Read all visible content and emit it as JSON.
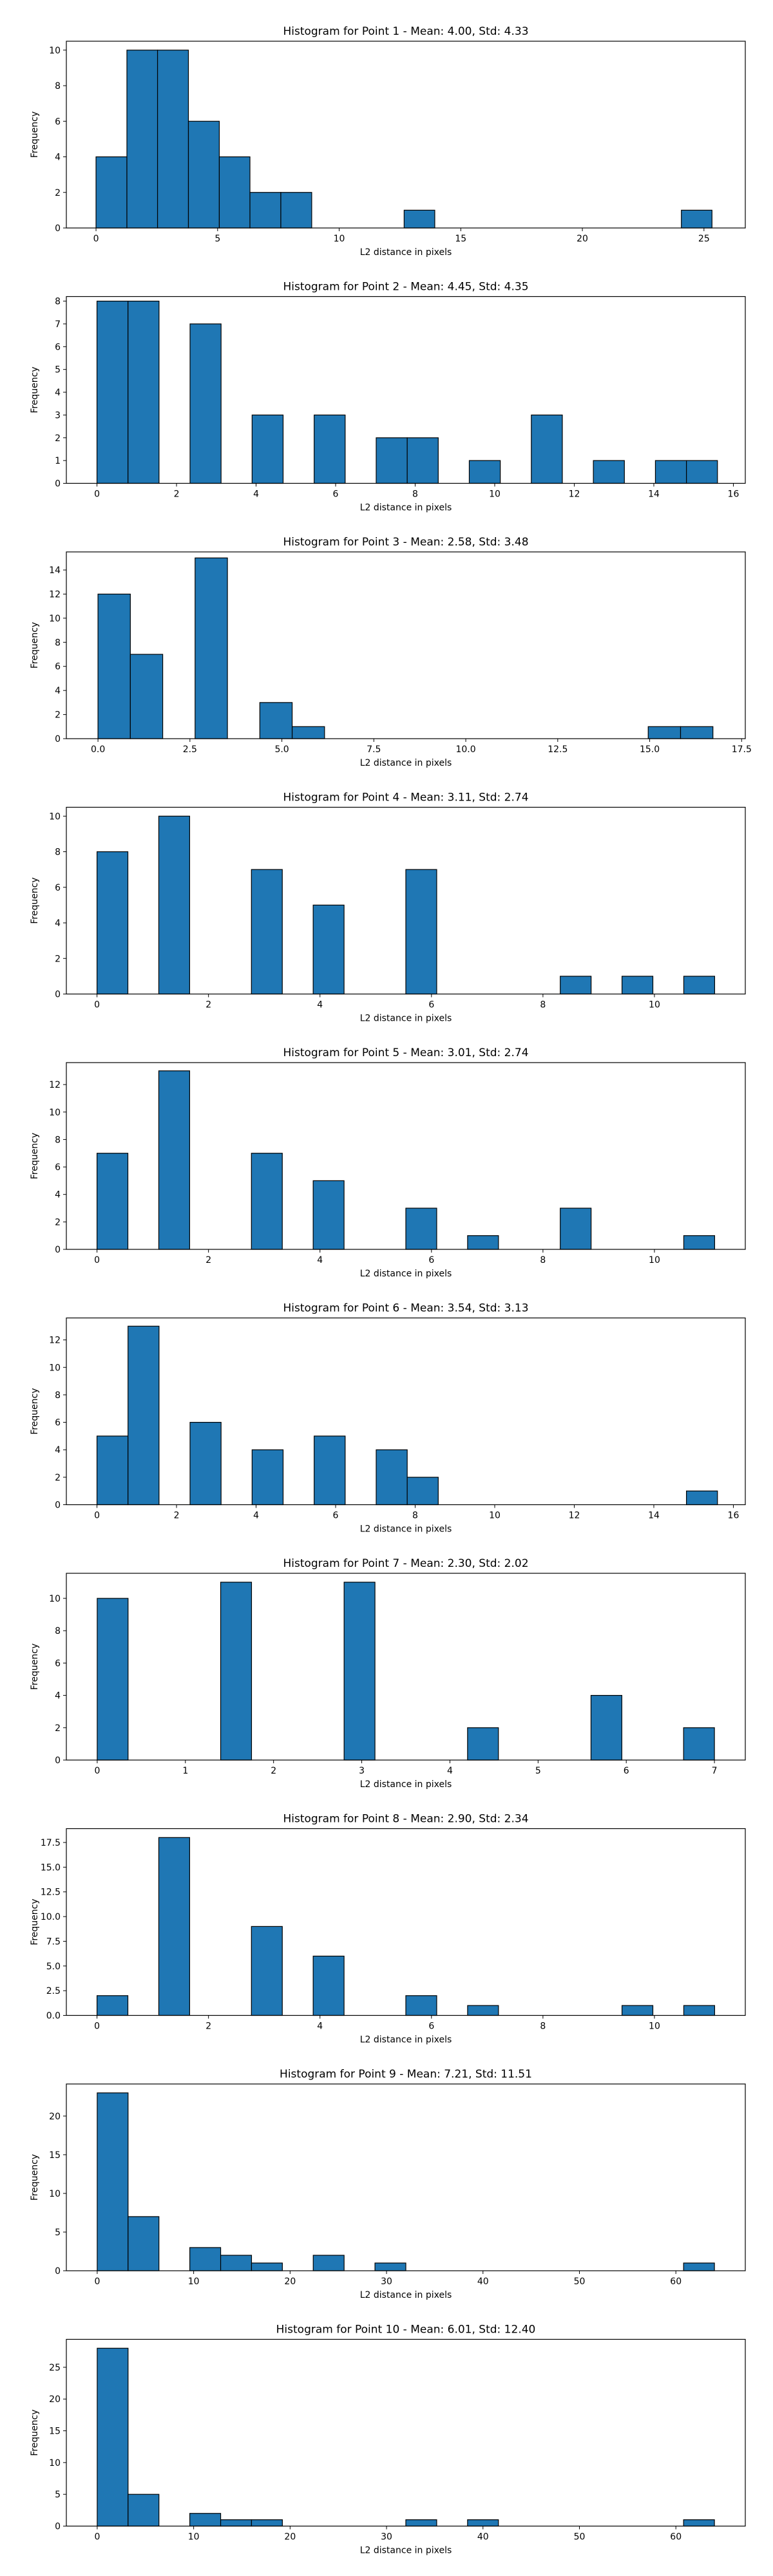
{
  "figure": {
    "bar_color": "#1f77b4",
    "edge_color": "#000000"
  },
  "chart_data": [
    {
      "type": "bar",
      "title": "Histogram for Point 1 - Mean: 4.00, Std: 4.33",
      "xlabel": "L2 distance in pixels",
      "ylabel": "Frequency",
      "xlim": [
        -1.22,
        26.7
      ],
      "ylim": [
        0,
        10.5
      ],
      "xticks": [
        0,
        5,
        10,
        15,
        20,
        25
      ],
      "xtick_labels": [
        "0",
        "5",
        "10",
        "15",
        "20",
        "25"
      ],
      "yticks": [
        0,
        2,
        4,
        6,
        8,
        10
      ],
      "ytick_labels": [
        "0",
        "2",
        "4",
        "6",
        "8",
        "10"
      ],
      "bin_edges": [
        0.0,
        1.27,
        2.53,
        3.8,
        5.07,
        6.33,
        7.6,
        8.87,
        10.13,
        11.4,
        12.67,
        13.93,
        15.2,
        16.47,
        17.73,
        19.0,
        20.27,
        21.53,
        22.8,
        24.07,
        25.33
      ],
      "counts": [
        4,
        10,
        10,
        6,
        4,
        2,
        2,
        0,
        0,
        0,
        1,
        0,
        0,
        0,
        0,
        0,
        0,
        0,
        0,
        1
      ]
    },
    {
      "type": "bar",
      "title": "Histogram for Point 2 - Mean: 4.45, Std: 4.35",
      "xlabel": "L2 distance in pixels",
      "ylabel": "Frequency",
      "xlim": [
        -0.77,
        16.3
      ],
      "ylim": [
        0,
        8.2
      ],
      "xticks": [
        0,
        2,
        4,
        6,
        8,
        10,
        12,
        14,
        16
      ],
      "xtick_labels": [
        "0",
        "2",
        "4",
        "6",
        "8",
        "10",
        "12",
        "14",
        "16"
      ],
      "yticks": [
        0,
        1,
        2,
        3,
        4,
        5,
        6,
        7,
        8
      ],
      "ytick_labels": [
        "0",
        "1",
        "2",
        "3",
        "4",
        "5",
        "6",
        "7",
        "8"
      ],
      "bin_edges": [
        0.0,
        0.78,
        1.56,
        2.34,
        3.12,
        3.9,
        4.68,
        5.46,
        6.24,
        7.02,
        7.8,
        8.58,
        9.36,
        10.14,
        10.92,
        11.7,
        12.48,
        13.26,
        14.04,
        14.82,
        15.6
      ],
      "counts": [
        8,
        8,
        0,
        7,
        0,
        3,
        0,
        3,
        0,
        2,
        2,
        0,
        1,
        0,
        3,
        0,
        1,
        0,
        1,
        1
      ]
    },
    {
      "type": "bar",
      "title": "Histogram for Point 3 - Mean: 2.58, Std: 3.48",
      "xlabel": "L2 distance in pixels",
      "ylabel": "Frequency",
      "xlim": [
        -0.86,
        17.6
      ],
      "ylim": [
        0,
        15.5
      ],
      "xticks": [
        0,
        2.5,
        5,
        7.5,
        10,
        12.5,
        15,
        17.5
      ],
      "xtick_labels": [
        "0.0",
        "2.5",
        "5.0",
        "7.5",
        "10.0",
        "12.5",
        "15.0",
        "17.5"
      ],
      "yticks": [
        0,
        2,
        4,
        6,
        8,
        10,
        12,
        14
      ],
      "ytick_labels": [
        "0",
        "2",
        "4",
        "6",
        "8",
        "10",
        "12",
        "14"
      ],
      "bin_edges": [
        0.0,
        0.88,
        1.76,
        2.64,
        3.52,
        4.4,
        5.28,
        6.16,
        7.04,
        7.92,
        8.8,
        9.68,
        10.56,
        11.44,
        12.32,
        13.2,
        14.08,
        14.96,
        15.84,
        16.72,
        17.6
      ],
      "counts": [
        12,
        7,
        0,
        15,
        0,
        3,
        1,
        0,
        0,
        0,
        0,
        0,
        0,
        0,
        0,
        0,
        0,
        1,
        1,
        0
      ]
    },
    {
      "type": "bar",
      "title": "Histogram for Point 4 - Mean: 3.11, Std: 2.74",
      "xlabel": "L2 distance in pixels",
      "ylabel": "Frequency",
      "xlim": [
        -0.55,
        11.63
      ],
      "ylim": [
        0,
        10.5
      ],
      "xticks": [
        0,
        2,
        4,
        6,
        8,
        10
      ],
      "xtick_labels": [
        "0",
        "2",
        "4",
        "6",
        "8",
        "10"
      ],
      "yticks": [
        0,
        2,
        4,
        6,
        8,
        10
      ],
      "ytick_labels": [
        "0",
        "2",
        "4",
        "6",
        "8",
        "10"
      ],
      "bin_edges": [
        0.0,
        0.554,
        1.108,
        1.662,
        2.216,
        2.77,
        3.324,
        3.878,
        4.432,
        4.986,
        5.54,
        6.094,
        6.648,
        7.202,
        7.756,
        8.31,
        8.864,
        9.418,
        9.972,
        10.526,
        11.08
      ],
      "counts": [
        8,
        0,
        10,
        0,
        0,
        7,
        0,
        5,
        0,
        0,
        7,
        0,
        0,
        0,
        0,
        1,
        0,
        1,
        0,
        1
      ]
    },
    {
      "type": "bar",
      "title": "Histogram for Point 5 - Mean: 3.01, Std: 2.74",
      "xlabel": "L2 distance in pixels",
      "ylabel": "Frequency",
      "xlim": [
        -0.55,
        11.63
      ],
      "ylim": [
        0,
        13.6
      ],
      "xticks": [
        0,
        2,
        4,
        6,
        8,
        10
      ],
      "xtick_labels": [
        "0",
        "2",
        "4",
        "6",
        "8",
        "10"
      ],
      "yticks": [
        0,
        2,
        4,
        6,
        8,
        10,
        12
      ],
      "ytick_labels": [
        "0",
        "2",
        "4",
        "6",
        "8",
        "10",
        "12"
      ],
      "bin_edges": [
        0.0,
        0.554,
        1.108,
        1.662,
        2.216,
        2.77,
        3.324,
        3.878,
        4.432,
        4.986,
        5.54,
        6.094,
        6.648,
        7.202,
        7.756,
        8.31,
        8.864,
        9.418,
        9.972,
        10.526,
        11.08
      ],
      "counts": [
        7,
        0,
        13,
        0,
        0,
        7,
        0,
        5,
        0,
        0,
        3,
        0,
        1,
        0,
        0,
        3,
        0,
        0,
        0,
        1
      ]
    },
    {
      "type": "bar",
      "title": "Histogram for Point 6 - Mean: 3.54, Std: 3.13",
      "xlabel": "L2 distance in pixels",
      "ylabel": "Frequency",
      "xlim": [
        -0.77,
        16.3
      ],
      "ylim": [
        0,
        13.6
      ],
      "xticks": [
        0,
        2,
        4,
        6,
        8,
        10,
        12,
        14,
        16
      ],
      "xtick_labels": [
        "0",
        "2",
        "4",
        "6",
        "8",
        "10",
        "12",
        "14",
        "16"
      ],
      "yticks": [
        0,
        2,
        4,
        6,
        8,
        10,
        12
      ],
      "ytick_labels": [
        "0",
        "2",
        "4",
        "6",
        "8",
        "10",
        "12"
      ],
      "bin_edges": [
        0.0,
        0.78,
        1.56,
        2.34,
        3.12,
        3.9,
        4.68,
        5.46,
        6.24,
        7.02,
        7.8,
        8.58,
        9.36,
        10.14,
        10.92,
        11.7,
        12.48,
        13.26,
        14.04,
        14.82,
        15.6
      ],
      "counts": [
        5,
        13,
        0,
        6,
        0,
        4,
        0,
        5,
        0,
        4,
        2,
        0,
        0,
        0,
        0,
        0,
        0,
        0,
        0,
        1
      ]
    },
    {
      "type": "bar",
      "title": "Histogram for Point 7 - Mean: 2.30, Std: 2.02",
      "xlabel": "L2 distance in pixels",
      "ylabel": "Frequency",
      "xlim": [
        -0.35,
        7.35
      ],
      "ylim": [
        0,
        11.55
      ],
      "xticks": [
        0,
        1,
        2,
        3,
        4,
        5,
        6,
        7
      ],
      "xtick_labels": [
        "0",
        "1",
        "2",
        "3",
        "4",
        "5",
        "6",
        "7"
      ],
      "yticks": [
        0,
        2,
        4,
        6,
        8,
        10
      ],
      "ytick_labels": [
        "0",
        "2",
        "4",
        "6",
        "8",
        "10"
      ],
      "bin_edges": [
        0.0,
        0.35,
        0.7,
        1.05,
        1.4,
        1.75,
        2.1,
        2.45,
        2.8,
        3.15,
        3.5,
        3.85,
        4.2,
        4.55,
        4.9,
        5.25,
        5.6,
        5.95,
        6.3,
        6.65,
        7.0
      ],
      "counts": [
        10,
        0,
        0,
        0,
        11,
        0,
        0,
        0,
        11,
        0,
        0,
        0,
        2,
        0,
        0,
        0,
        4,
        0,
        0,
        2
      ]
    },
    {
      "type": "bar",
      "title": "Histogram for Point 8 - Mean: 2.90, Std: 2.34",
      "xlabel": "L2 distance in pixels",
      "ylabel": "Frequency",
      "xlim": [
        -0.55,
        11.63
      ],
      "ylim": [
        0,
        18.9
      ],
      "xticks": [
        0,
        2,
        4,
        6,
        8,
        10
      ],
      "xtick_labels": [
        "0",
        "2",
        "4",
        "6",
        "8",
        "10"
      ],
      "yticks": [
        0,
        2.5,
        5,
        7.5,
        10,
        12.5,
        15,
        17.5
      ],
      "ytick_labels": [
        "0.0",
        "2.5",
        "5.0",
        "7.5",
        "10.0",
        "12.5",
        "15.0",
        "17.5"
      ],
      "bin_edges": [
        0.0,
        0.554,
        1.108,
        1.662,
        2.216,
        2.77,
        3.324,
        3.878,
        4.432,
        4.986,
        5.54,
        6.094,
        6.648,
        7.202,
        7.756,
        8.31,
        8.864,
        9.418,
        9.972,
        10.526,
        11.08
      ],
      "counts": [
        2,
        0,
        18,
        0,
        0,
        9,
        0,
        6,
        0,
        0,
        2,
        0,
        1,
        0,
        0,
        0,
        0,
        1,
        0,
        1
      ]
    },
    {
      "type": "bar",
      "title": "Histogram for Point 9 - Mean: 7.21, Std: 11.51",
      "xlabel": "L2 distance in pixels",
      "ylabel": "Frequency",
      "xlim": [
        -3.2,
        67.2
      ],
      "ylim": [
        0,
        24.15
      ],
      "xticks": [
        0,
        10,
        20,
        30,
        40,
        50,
        60
      ],
      "xtick_labels": [
        "0",
        "10",
        "20",
        "30",
        "40",
        "50",
        "60"
      ],
      "yticks": [
        0,
        5,
        10,
        15,
        20
      ],
      "ytick_labels": [
        "0",
        "5",
        "10",
        "15",
        "20"
      ],
      "bin_edges": [
        0.0,
        3.2,
        6.4,
        9.6,
        12.8,
        16.0,
        19.2,
        22.4,
        25.6,
        28.8,
        32.0,
        35.2,
        38.4,
        41.6,
        44.8,
        48.0,
        51.2,
        54.4,
        57.6,
        60.8,
        64.0
      ],
      "counts": [
        23,
        7,
        0,
        3,
        2,
        1,
        0,
        2,
        0,
        1,
        0,
        0,
        0,
        0,
        0,
        0,
        0,
        0,
        0,
        1
      ]
    },
    {
      "type": "bar",
      "title": "Histogram for Point 10 - Mean: 6.01, Std: 12.40",
      "xlabel": "L2 distance in pixels",
      "ylabel": "Frequency",
      "xlim": [
        -3.2,
        67.2
      ],
      "ylim": [
        0,
        29.4
      ],
      "xticks": [
        0,
        10,
        20,
        30,
        40,
        50,
        60
      ],
      "xtick_labels": [
        "0",
        "10",
        "20",
        "30",
        "40",
        "50",
        "60"
      ],
      "yticks": [
        0,
        5,
        10,
        15,
        20,
        25
      ],
      "ytick_labels": [
        "0",
        "5",
        "10",
        "15",
        "20",
        "25"
      ],
      "bin_edges": [
        0.0,
        3.2,
        6.4,
        9.6,
        12.8,
        16.0,
        19.2,
        22.4,
        25.6,
        28.8,
        32.0,
        35.2,
        38.4,
        41.6,
        44.8,
        48.0,
        51.2,
        54.4,
        57.6,
        60.8,
        64.0
      ],
      "counts": [
        28,
        5,
        0,
        2,
        1,
        1,
        0,
        0,
        0,
        0,
        1,
        0,
        1,
        0,
        0,
        0,
        0,
        0,
        0,
        1
      ]
    }
  ]
}
